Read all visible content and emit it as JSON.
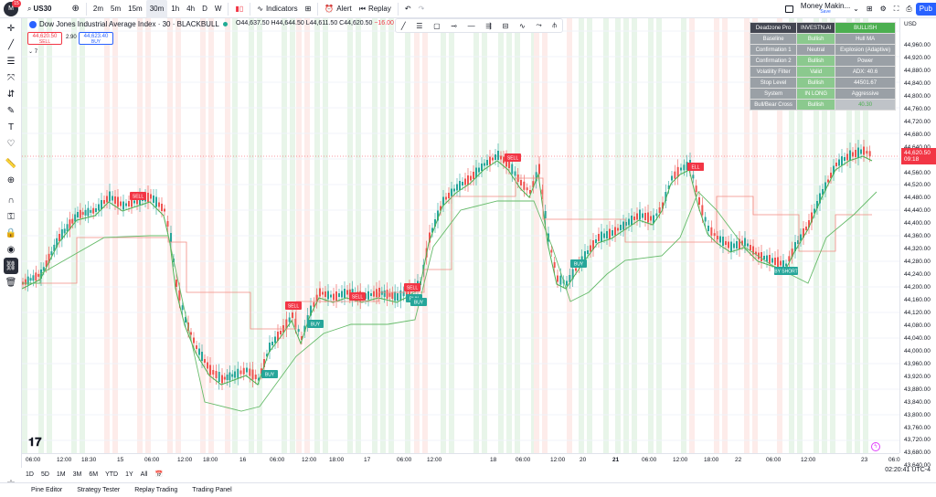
{
  "topbar": {
    "avatar_initial": "M",
    "avatar_badge": "15",
    "symbol": "US30",
    "intervals": [
      "2m",
      "5m",
      "15m",
      "30m",
      "1h",
      "4h",
      "D",
      "W"
    ],
    "active_interval": "30m",
    "indicators_label": "Indicators",
    "alert_label": "Alert",
    "replay_label": "Replay",
    "layout_name": "Money Makin...",
    "layout_status": "Save",
    "publish_label": "Pub"
  },
  "legend": {
    "title": "Dow Jones Industrial Average Index · 30 · BLACKBULL",
    "open": "O44,637.50",
    "high": "H44,644.50",
    "low": "L44,611.50",
    "close": "C44,620.50",
    "change": "−16.00",
    "sell_price": "44,620.50",
    "sell_label": "SELL",
    "spread": "2.90",
    "buy_price": "44,623.40",
    "buy_label": "BUY",
    "indicator_count": "7"
  },
  "info_table": {
    "rows": [
      [
        "Deadzone Pro",
        "INVESTN.AI",
        "BULLISH"
      ],
      [
        "Baseline",
        "Bullish",
        "Hull MA"
      ],
      [
        "Confirmation 1",
        "Neutral",
        "Explosion (Adaptive)"
      ],
      [
        "Confirmation 2",
        "Bullish",
        "Power"
      ],
      [
        "Volatility Filter",
        "Valid",
        "ADX: 40.6"
      ],
      [
        "Stop Level",
        "Bullish",
        "44501.67"
      ],
      [
        "System",
        "IN LONG",
        "Aggressive"
      ],
      [
        "Bull/Bear Cross",
        "Bullish",
        "40.30"
      ]
    ]
  },
  "price_axis": {
    "currency": "USD",
    "labels": [
      "44,960.00",
      "44,920.00",
      "44,880.00",
      "44,840.00",
      "44,800.00",
      "44,760.00",
      "44,720.00",
      "44,680.00",
      "44,640.00",
      "44,560.00",
      "44,520.00",
      "44,480.00",
      "44,440.00",
      "44,400.00",
      "44,360.00",
      "44,320.00",
      "44,280.00",
      "44,240.00",
      "44,200.00",
      "44,160.00",
      "44,120.00",
      "44,080.00",
      "44,040.00",
      "44,000.00",
      "43,960.00",
      "43,920.00",
      "43,880.00",
      "43,840.00",
      "43,800.00",
      "43,760.00",
      "43,720.00",
      "43,680.00",
      "43,640.00"
    ],
    "current_price": "44,620.50",
    "countdown": "09:18"
  },
  "time_axis": {
    "labels": [
      "06:00",
      "12:00",
      "18:30",
      "15",
      "06:00",
      "12:00",
      "18:00",
      "16",
      "06:00",
      "12:00",
      "18:00",
      "17",
      "06:00",
      "12:00",
      "18",
      "06:00",
      "12:00",
      "20",
      "21",
      "06:00",
      "12:00",
      "18:00",
      "22",
      "06:00",
      "12:00",
      "23",
      "06:0"
    ]
  },
  "range_bar": {
    "ranges": [
      "1D",
      "5D",
      "1M",
      "3M",
      "6M",
      "YTD",
      "1Y",
      "All"
    ],
    "clock": "02:20:41 UTC-4"
  },
  "bottom_tabs": [
    "Pine Editor",
    "Strategy Tester",
    "Replay Trading",
    "Trading Panel"
  ],
  "signals": [
    {
      "label": "SELL",
      "type": "sell"
    },
    {
      "label": "BUY",
      "type": "buy"
    },
    {
      "label": "SELL",
      "type": "sell"
    },
    {
      "label": "BUY",
      "type": "buy"
    },
    {
      "label": "SELL",
      "type": "sell"
    },
    {
      "label": "BUY",
      "type": "buy"
    },
    {
      "label": "SELL",
      "type": "sell"
    },
    {
      "label": "BUY",
      "type": "buy"
    },
    {
      "label": "SELL",
      "type": "sell"
    },
    {
      "label": "BUY",
      "type": "buy"
    },
    {
      "label": "ELL",
      "type": "sell"
    },
    {
      "label": "BUY",
      "type": "buy"
    },
    {
      "label": "ELL",
      "type": "sell"
    },
    {
      "label": "BY SHORT",
      "type": "buy"
    }
  ],
  "colors": {
    "bull": "#26a69a",
    "bear": "#ef5350",
    "bull_band": "#e8f5e9",
    "bear_band": "#fdecea",
    "green_line": "#4caf50",
    "red_line": "#f28b82"
  }
}
